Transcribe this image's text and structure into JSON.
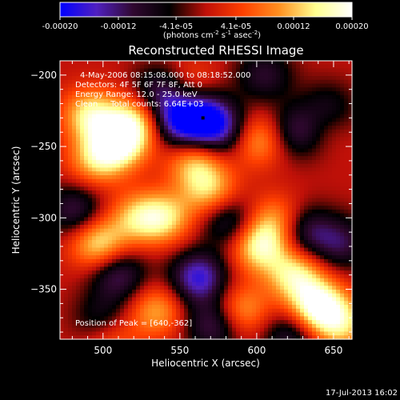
{
  "colorbar": {
    "tick_labels": [
      "-0.00020",
      "-0.00012",
      "-4.1e-05",
      "4.1e-05",
      "0.00012",
      "0.00020"
    ],
    "tick_values": [
      -0.0002,
      -0.00012,
      -4.1e-05,
      4.1e-05,
      0.00012,
      0.0002
    ],
    "range": [
      -0.0002,
      0.0002
    ],
    "units_main": "(photons cm",
    "units_exp1": "-2",
    "units_mid": " s",
    "units_exp2": "-1",
    "units_end": " asec",
    "units_exp3": "-2",
    "units_close": ")",
    "colors": [
      "#0000ff",
      "#5020c0",
      "#300830",
      "#000000",
      "#c01008",
      "#ff4000",
      "#ff9020",
      "#ffff90",
      "#ffffff"
    ]
  },
  "chart_data": {
    "type": "heatmap",
    "title": "Reconstructed RHESSI Image",
    "xlabel": "Heliocentric X (arcsec)",
    "ylabel": "Heliocentric Y (arcsec)",
    "xlim": [
      472,
      662
    ],
    "ylim": [
      -385,
      -190
    ],
    "xticks": [
      500,
      550,
      600,
      650
    ],
    "yticks": [
      -200,
      -250,
      -300,
      -350
    ],
    "colormap": "blue-purple-black-red-yellow-white",
    "blobs": [
      {
        "x": 492,
        "y": -228,
        "v": 0.75
      },
      {
        "x": 495,
        "y": -260,
        "v": 0.55
      },
      {
        "x": 510,
        "y": -248,
        "v": 0.9
      },
      {
        "x": 522,
        "y": -232,
        "v": 0.7
      },
      {
        "x": 560,
        "y": -262,
        "v": 0.6
      },
      {
        "x": 556,
        "y": -208,
        "v": 0.35
      },
      {
        "x": 600,
        "y": -245,
        "v": 0.6
      },
      {
        "x": 640,
        "y": -232,
        "v": 0.55
      },
      {
        "x": 497,
        "y": -318,
        "v": 0.75
      },
      {
        "x": 540,
        "y": -300,
        "v": 0.65
      },
      {
        "x": 522,
        "y": -300,
        "v": 0.55
      },
      {
        "x": 570,
        "y": -282,
        "v": 0.6
      },
      {
        "x": 602,
        "y": -320,
        "v": 0.8
      },
      {
        "x": 625,
        "y": -340,
        "v": 0.75
      },
      {
        "x": 640,
        "y": -362,
        "v": 1.0
      },
      {
        "x": 655,
        "y": -375,
        "v": 0.6
      },
      {
        "x": 590,
        "y": -365,
        "v": 0.55
      },
      {
        "x": 535,
        "y": -365,
        "v": 0.55
      },
      {
        "x": 505,
        "y": -382,
        "v": 0.45
      },
      {
        "x": 612,
        "y": -302,
        "v": 0.5
      },
      {
        "x": 565,
        "y": -230,
        "v": -0.95
      },
      {
        "x": 548,
        "y": -232,
        "v": -0.75
      },
      {
        "x": 538,
        "y": -212,
        "v": -0.6
      },
      {
        "x": 580,
        "y": -240,
        "v": -0.55
      },
      {
        "x": 628,
        "y": -238,
        "v": -0.7
      },
      {
        "x": 645,
        "y": -225,
        "v": -0.6
      },
      {
        "x": 582,
        "y": -302,
        "v": -0.55
      },
      {
        "x": 562,
        "y": -342,
        "v": -0.85
      },
      {
        "x": 510,
        "y": -340,
        "v": -0.6
      },
      {
        "x": 482,
        "y": -295,
        "v": -0.55
      },
      {
        "x": 500,
        "y": -372,
        "v": -0.5
      },
      {
        "x": 632,
        "y": -310,
        "v": -0.55
      },
      {
        "x": 572,
        "y": -375,
        "v": -0.6
      },
      {
        "x": 622,
        "y": -383,
        "v": -0.5
      },
      {
        "x": 655,
        "y": -318,
        "v": -0.5
      },
      {
        "x": 605,
        "y": -200,
        "v": -0.45
      }
    ]
  },
  "annotations": {
    "line1": "4-May-2006 08:15:08.000 to 08:18:52.000",
    "line2": "Detectors: 4F 5F 6F 7F 8F, Att 0",
    "line3": "Energy Range: 12.0 - 25.0 keV",
    "line4": "Clean     Total counts: 6.64E+03",
    "peak": "Position of Peak = [640,-362]"
  },
  "timestamp": "17-Jul-2013 16:02"
}
